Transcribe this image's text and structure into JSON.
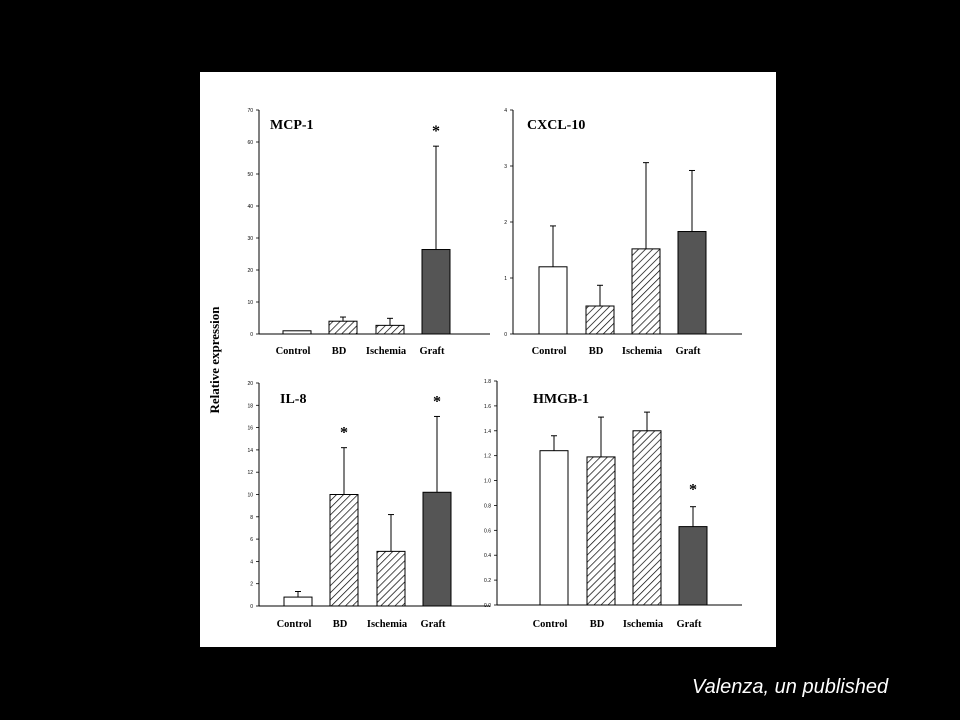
{
  "ylabel": "Relative expression",
  "credit": "Valenza, un published",
  "fills": {
    "Control": "#ffffff",
    "BD": "hatch",
    "Ischemia": "hatch",
    "Graft": "#555555"
  },
  "chart_data": [
    {
      "type": "bar",
      "title": "MCP-1",
      "categories": [
        "Control",
        "BD",
        "Ischemia",
        "Graft"
      ],
      "values": [
        1,
        4,
        2.7,
        26.4
      ],
      "errors": [
        0,
        1.3,
        2.2,
        32.3
      ],
      "significant": [
        false,
        false,
        false,
        true
      ],
      "ylim": [
        0,
        70
      ],
      "yticks": [
        0,
        10,
        20,
        30,
        40,
        50,
        60,
        70
      ]
    },
    {
      "type": "bar",
      "title": "CXCL-10",
      "categories": [
        "Control",
        "BD",
        "Ischemia",
        "Graft"
      ],
      "values": [
        1.2,
        0.5,
        1.52,
        1.83
      ],
      "errors": [
        0.73,
        0.37,
        1.54,
        1.09
      ],
      "significant": [
        false,
        false,
        false,
        false
      ],
      "ylim": [
        0,
        4
      ],
      "yticks": [
        0,
        1,
        2,
        3,
        4
      ]
    },
    {
      "type": "bar",
      "title": "IL-8",
      "categories": [
        "Control",
        "BD",
        "Ischemia",
        "Graft"
      ],
      "values": [
        0.8,
        10,
        4.9,
        10.2
      ],
      "errors": [
        0.5,
        4.2,
        3.3,
        6.8
      ],
      "significant": [
        false,
        true,
        false,
        true
      ],
      "ylim": [
        0,
        20
      ],
      "yticks": [
        0,
        2,
        4,
        6,
        8,
        10,
        12,
        14,
        16,
        18,
        20
      ]
    },
    {
      "type": "bar",
      "title": "HMGB-1",
      "categories": [
        "Control",
        "BD",
        "Ischemia",
        "Graft"
      ],
      "values": [
        1.24,
        1.19,
        1.4,
        0.63
      ],
      "errors": [
        0.12,
        0.32,
        0.15,
        0.16
      ],
      "significant": [
        false,
        false,
        false,
        true
      ],
      "ylim": [
        0,
        1.8
      ],
      "yticks": [
        "0.0",
        "0.2",
        "0.4",
        "0.6",
        "0.8",
        "1.0",
        "1.2",
        "1.4",
        "1.6",
        "1.8"
      ]
    }
  ]
}
